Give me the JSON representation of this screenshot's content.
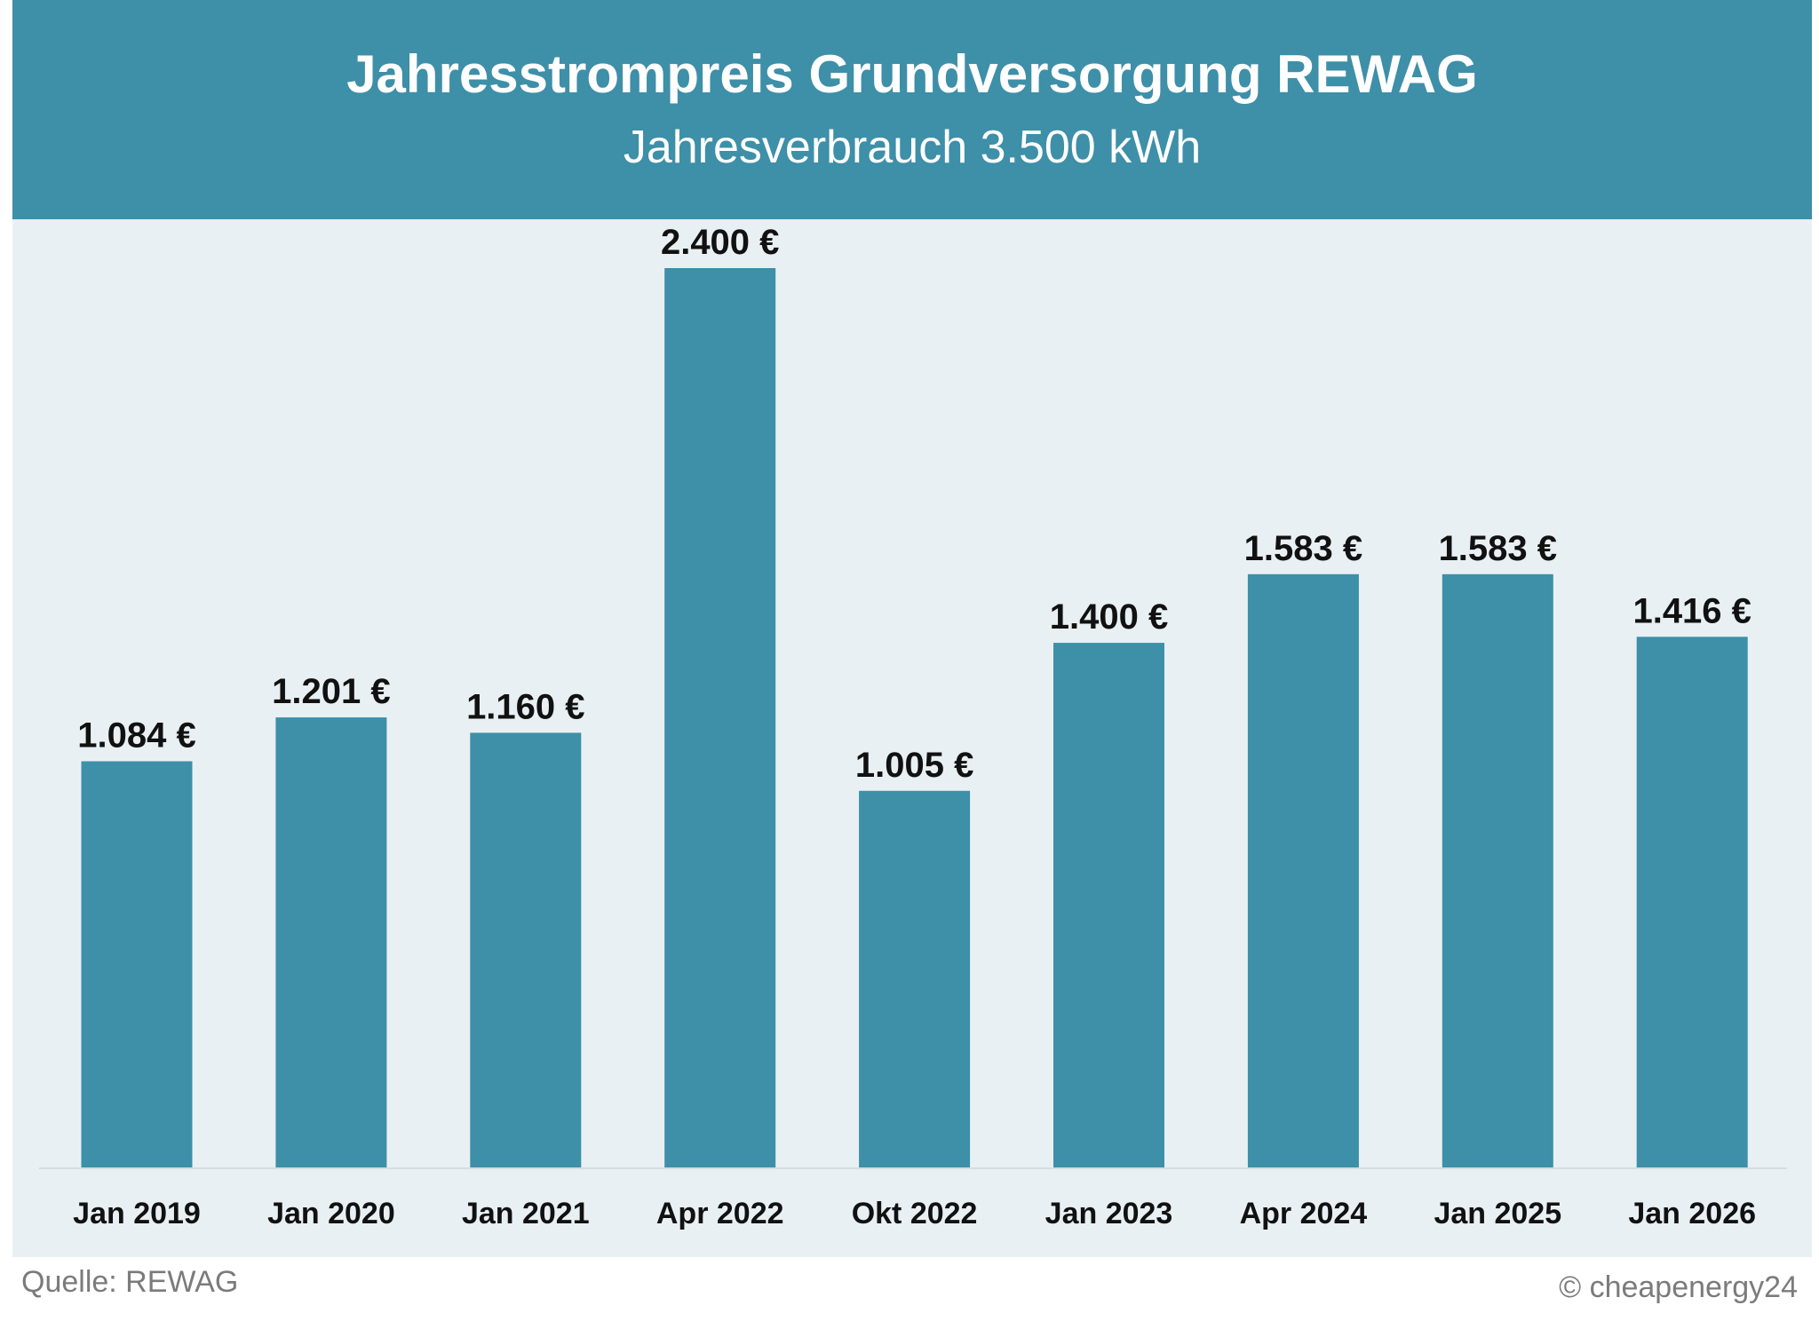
{
  "chart_data": {
    "type": "bar",
    "title": "Jahresstrompreis Grundversorgung REWAG",
    "subtitle": "Jahresverbrauch 3.500 kWh",
    "categories": [
      "Jan 2019",
      "Jan 2020",
      "Jan 2021",
      "Apr 2022",
      "Okt 2022",
      "Jan 2023",
      "Apr 2024",
      "Jan 2025",
      "Jan 2026"
    ],
    "values": [
      1084,
      1201,
      1160,
      2400,
      1005,
      1400,
      1583,
      1583,
      1416
    ],
    "value_labels": [
      "1.084 €",
      "1.201 €",
      "1.160 €",
      "2.400 €",
      "1.005 €",
      "1.400 €",
      "1.583 €",
      "1.583 €",
      "1.416 €"
    ],
    "ylim": [
      0,
      2400
    ],
    "grid": false,
    "legend": "none",
    "colors": {
      "bar": "#3e8fa8",
      "header": "#3e8fa8",
      "plot_background": "#e9f0f3",
      "label_text": "#111111",
      "baseline": "#d6dde0"
    }
  },
  "footer": {
    "source": "Quelle: REWAG",
    "copyright": "© cheapenergy24"
  }
}
